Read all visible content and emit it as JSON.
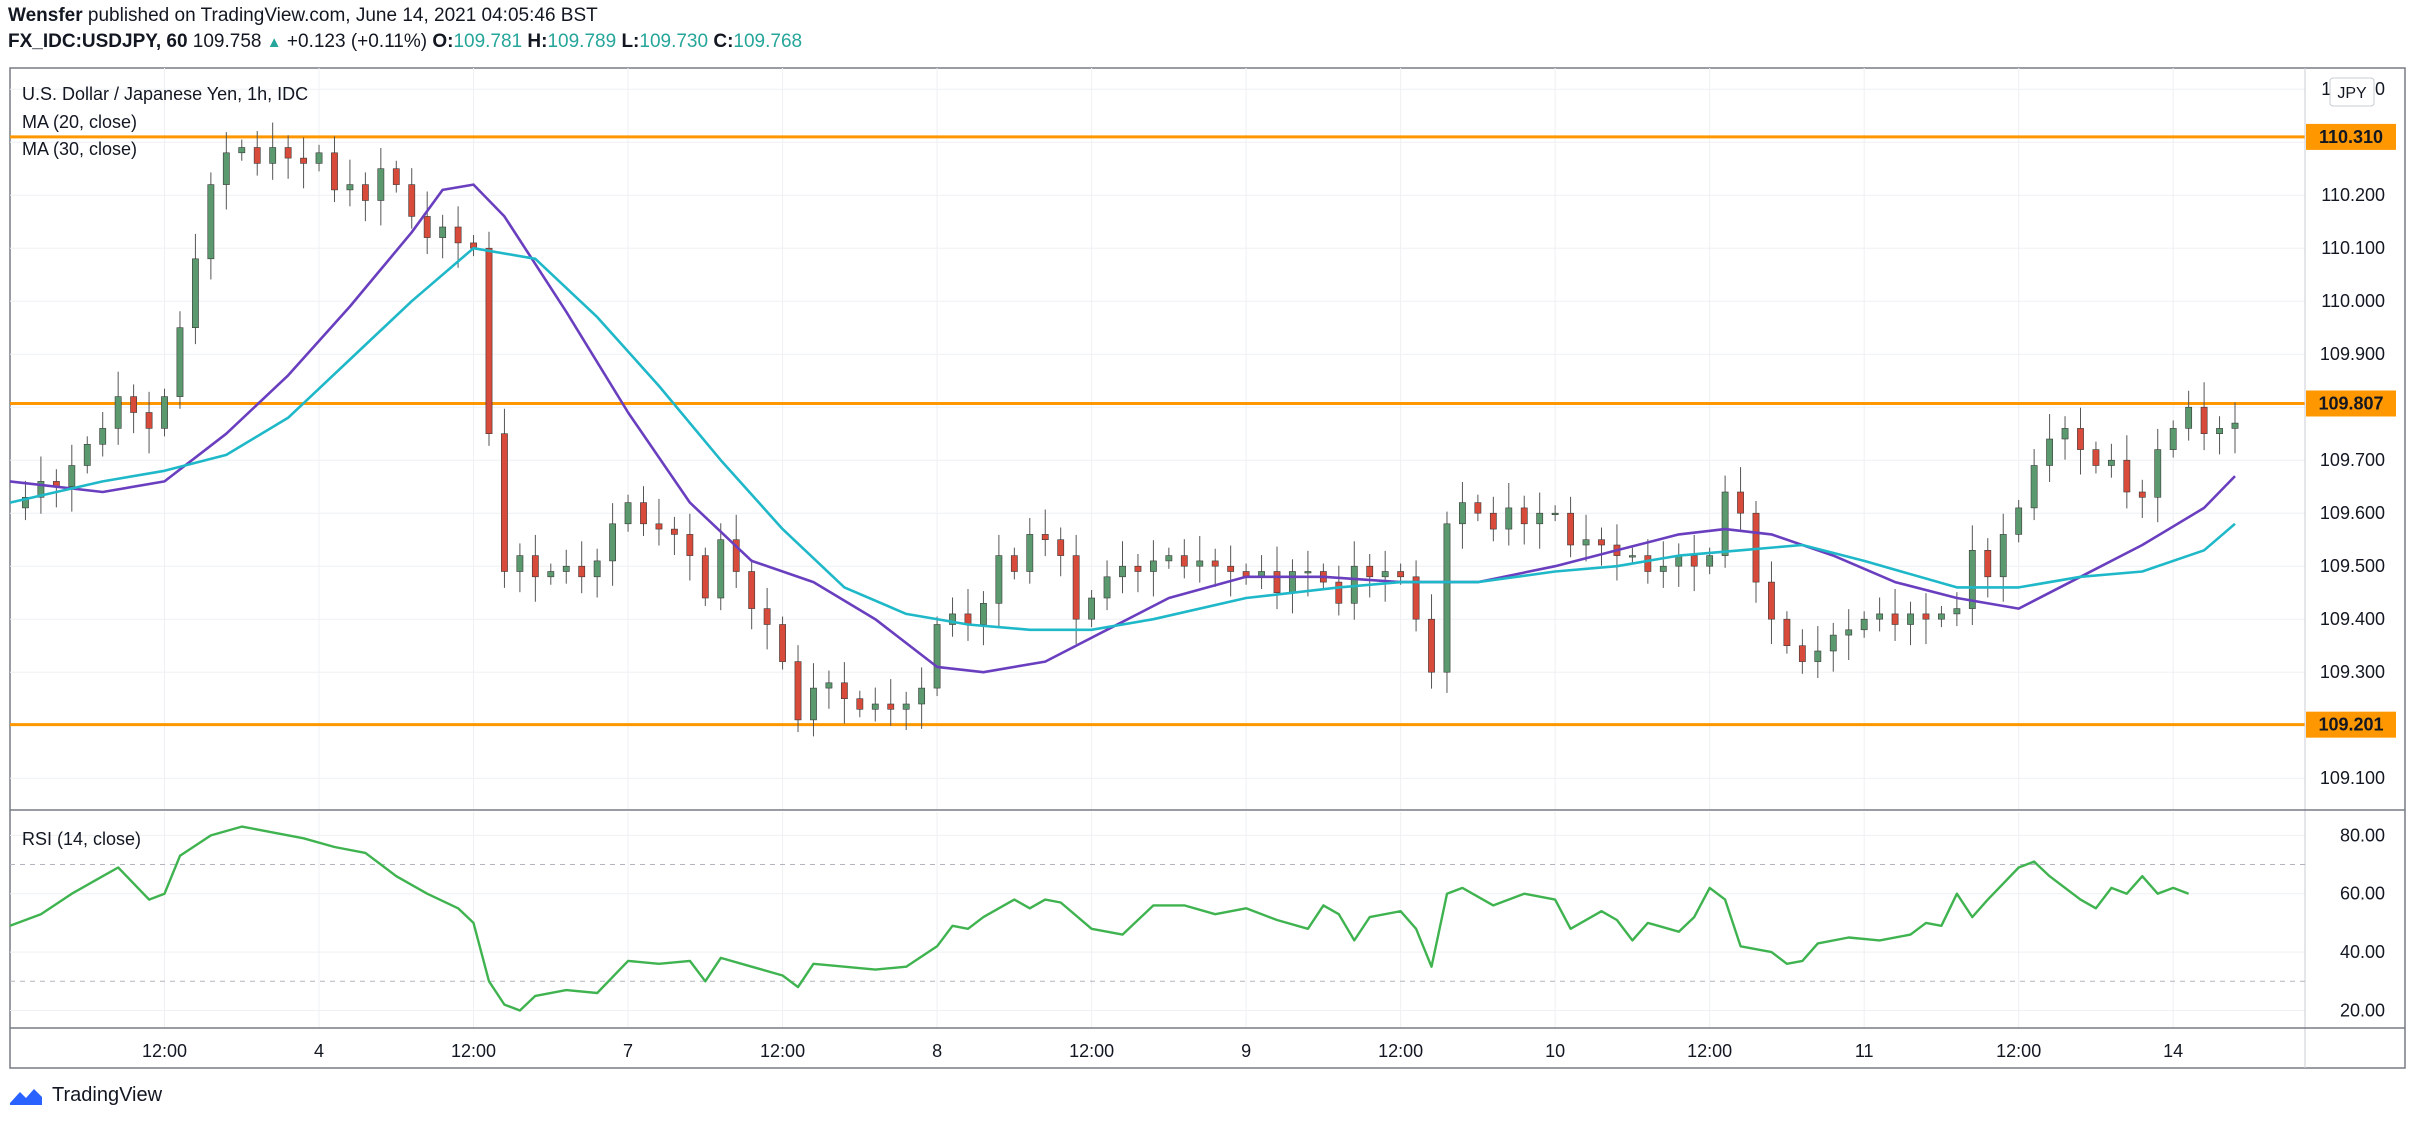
{
  "header": {
    "publisher": "Wensfer",
    "published_text": "published on TradingView.com, June 14, 2021 04:05:46 BST",
    "symbol": "FX_IDC:USDJPY, 60",
    "last": "109.758",
    "change": "+0.123 (+0.11%)",
    "o_label": "O:",
    "o": "109.781",
    "h_label": "H:",
    "h": "109.789",
    "l_label": "L:",
    "l": "109.730",
    "c_label": "C:",
    "c": "109.768"
  },
  "legend": {
    "title": "U.S. Dollar / Japanese Yen, 1h, IDC",
    "ma20": "MA (20, close)",
    "ma30": "MA (30, close)",
    "currency": "JPY",
    "rsi": "RSI (14, close)"
  },
  "footer": {
    "brand": "TradingView"
  },
  "colors": {
    "up": "#5b9a6e",
    "down": "#d84a3a",
    "ma20": "#6a3fbf",
    "ma30": "#1fb8c9",
    "level": "#ff9800",
    "rsi": "#3fb34f",
    "grid": "#eef0f3"
  },
  "chart_data": {
    "type": "candlestick",
    "title": "U.S. Dollar / Japanese Yen, 1h, IDC",
    "price_axis": {
      "ylim": [
        109.04,
        110.44
      ],
      "ticks": [
        109.1,
        109.2,
        109.3,
        109.4,
        109.5,
        109.6,
        109.7,
        109.8,
        109.9,
        110.0,
        110.1,
        110.2,
        110.3,
        110.4
      ],
      "tick_labels": [
        "109.100",
        "109.200",
        "109.300",
        "109.400",
        "109.500",
        "109.600",
        "109.700",
        "109.800",
        "109.900",
        "110.000",
        "110.100",
        "110.200",
        "110.300",
        "110.400"
      ]
    },
    "x_axis": {
      "range": [
        0,
        144
      ],
      "tick_labels": [
        {
          "label": "12:00",
          "x": 10
        },
        {
          "label": "4",
          "x": 20
        },
        {
          "label": "12:00",
          "x": 30
        },
        {
          "label": "7",
          "x": 40
        },
        {
          "label": "12:00",
          "x": 50
        },
        {
          "label": "8",
          "x": 60
        },
        {
          "label": "12:00",
          "x": 70
        },
        {
          "label": "9",
          "x": 80
        },
        {
          "label": "12:00",
          "x": 90
        },
        {
          "label": "10",
          "x": 100
        },
        {
          "label": "12:00",
          "x": 110
        },
        {
          "label": "11",
          "x": 120
        },
        {
          "label": "12:00",
          "x": 130
        },
        {
          "label": "14",
          "x": 140
        }
      ]
    },
    "levels": [
      {
        "value": 110.31,
        "label": "110.310"
      },
      {
        "value": 109.807,
        "label": "109.807"
      },
      {
        "value": 109.201,
        "label": "109.201"
      }
    ],
    "close_anchors": [
      [
        0,
        109.61
      ],
      [
        1,
        109.63
      ],
      [
        2,
        109.66
      ],
      [
        3,
        109.65
      ],
      [
        4,
        109.69
      ],
      [
        5,
        109.73
      ],
      [
        6,
        109.76
      ],
      [
        7,
        109.82
      ],
      [
        8,
        109.79
      ],
      [
        9,
        109.76
      ],
      [
        10,
        109.82
      ],
      [
        11,
        109.95
      ],
      [
        12,
        110.08
      ],
      [
        13,
        110.22
      ],
      [
        14,
        110.28
      ],
      [
        15,
        110.29
      ],
      [
        16,
        110.26
      ],
      [
        17,
        110.29
      ],
      [
        18,
        110.27
      ],
      [
        19,
        110.26
      ],
      [
        20,
        110.28
      ],
      [
        21,
        110.21
      ],
      [
        22,
        110.22
      ],
      [
        23,
        110.19
      ],
      [
        24,
        110.25
      ],
      [
        25,
        110.22
      ],
      [
        26,
        110.16
      ],
      [
        27,
        110.12
      ],
      [
        28,
        110.14
      ],
      [
        29,
        110.11
      ],
      [
        30,
        110.1
      ],
      [
        31,
        109.75
      ],
      [
        32,
        109.49
      ],
      [
        33,
        109.52
      ],
      [
        34,
        109.48
      ],
      [
        35,
        109.49
      ],
      [
        36,
        109.5
      ],
      [
        37,
        109.48
      ],
      [
        38,
        109.51
      ],
      [
        39,
        109.58
      ],
      [
        40,
        109.62
      ],
      [
        41,
        109.58
      ],
      [
        42,
        109.57
      ],
      [
        43,
        109.56
      ],
      [
        44,
        109.52
      ],
      [
        45,
        109.44
      ],
      [
        46,
        109.55
      ],
      [
        47,
        109.49
      ],
      [
        48,
        109.42
      ],
      [
        49,
        109.39
      ],
      [
        50,
        109.32
      ],
      [
        51,
        109.21
      ],
      [
        52,
        109.27
      ],
      [
        53,
        109.28
      ],
      [
        54,
        109.25
      ],
      [
        55,
        109.23
      ],
      [
        56,
        109.24
      ],
      [
        57,
        109.23
      ],
      [
        58,
        109.24
      ],
      [
        59,
        109.27
      ],
      [
        60,
        109.39
      ],
      [
        61,
        109.41
      ],
      [
        62,
        109.39
      ],
      [
        63,
        109.43
      ],
      [
        64,
        109.52
      ],
      [
        65,
        109.49
      ],
      [
        66,
        109.56
      ],
      [
        67,
        109.55
      ],
      [
        68,
        109.52
      ],
      [
        69,
        109.4
      ],
      [
        70,
        109.44
      ],
      [
        71,
        109.48
      ],
      [
        72,
        109.5
      ],
      [
        73,
        109.49
      ],
      [
        74,
        109.51
      ],
      [
        75,
        109.52
      ],
      [
        76,
        109.5
      ],
      [
        77,
        109.51
      ],
      [
        78,
        109.5
      ],
      [
        79,
        109.49
      ],
      [
        80,
        109.48
      ],
      [
        81,
        109.49
      ],
      [
        82,
        109.45
      ],
      [
        83,
        109.49
      ],
      [
        84,
        109.49
      ],
      [
        85,
        109.47
      ],
      [
        86,
        109.43
      ],
      [
        87,
        109.5
      ],
      [
        88,
        109.48
      ],
      [
        89,
        109.49
      ],
      [
        90,
        109.48
      ],
      [
        91,
        109.4
      ],
      [
        92,
        109.3
      ],
      [
        93,
        109.58
      ],
      [
        94,
        109.62
      ],
      [
        95,
        109.6
      ],
      [
        96,
        109.57
      ],
      [
        97,
        109.61
      ],
      [
        98,
        109.58
      ],
      [
        99,
        109.6
      ],
      [
        100,
        109.6
      ],
      [
        101,
        109.54
      ],
      [
        102,
        109.55
      ],
      [
        103,
        109.54
      ],
      [
        104,
        109.52
      ],
      [
        105,
        109.52
      ],
      [
        106,
        109.49
      ],
      [
        107,
        109.5
      ],
      [
        108,
        109.52
      ],
      [
        109,
        109.5
      ],
      [
        110,
        109.52
      ],
      [
        111,
        109.64
      ],
      [
        112,
        109.6
      ],
      [
        113,
        109.47
      ],
      [
        114,
        109.4
      ],
      [
        115,
        109.35
      ],
      [
        116,
        109.32
      ],
      [
        117,
        109.34
      ],
      [
        118,
        109.37
      ],
      [
        119,
        109.38
      ],
      [
        120,
        109.4
      ],
      [
        121,
        109.41
      ],
      [
        122,
        109.39
      ],
      [
        123,
        109.41
      ],
      [
        124,
        109.4
      ],
      [
        125,
        109.41
      ],
      [
        126,
        109.42
      ],
      [
        127,
        109.53
      ],
      [
        128,
        109.48
      ],
      [
        129,
        109.56
      ],
      [
        130,
        109.61
      ],
      [
        131,
        109.69
      ],
      [
        132,
        109.74
      ],
      [
        133,
        109.76
      ],
      [
        134,
        109.72
      ],
      [
        135,
        109.69
      ],
      [
        136,
        109.7
      ],
      [
        137,
        109.64
      ],
      [
        138,
        109.63
      ],
      [
        139,
        109.72
      ],
      [
        140,
        109.76
      ],
      [
        141,
        109.8
      ],
      [
        142,
        109.75
      ],
      [
        143,
        109.76
      ],
      [
        144,
        109.77
      ]
    ],
    "series": [
      {
        "name": "MA (20, close)",
        "points": [
          [
            0,
            109.66
          ],
          [
            6,
            109.64
          ],
          [
            10,
            109.66
          ],
          [
            14,
            109.75
          ],
          [
            18,
            109.86
          ],
          [
            22,
            109.99
          ],
          [
            26,
            110.13
          ],
          [
            28,
            110.21
          ],
          [
            30,
            110.22
          ],
          [
            32,
            110.16
          ],
          [
            36,
            109.98
          ],
          [
            40,
            109.79
          ],
          [
            44,
            109.62
          ],
          [
            48,
            109.51
          ],
          [
            52,
            109.47
          ],
          [
            56,
            109.4
          ],
          [
            60,
            109.31
          ],
          [
            63,
            109.3
          ],
          [
            67,
            109.32
          ],
          [
            71,
            109.38
          ],
          [
            75,
            109.44
          ],
          [
            80,
            109.48
          ],
          [
            85,
            109.48
          ],
          [
            90,
            109.47
          ],
          [
            95,
            109.47
          ],
          [
            100,
            109.5
          ],
          [
            104,
            109.53
          ],
          [
            108,
            109.56
          ],
          [
            111,
            109.57
          ],
          [
            114,
            109.56
          ],
          [
            118,
            109.52
          ],
          [
            122,
            109.47
          ],
          [
            126,
            109.44
          ],
          [
            130,
            109.42
          ],
          [
            134,
            109.48
          ],
          [
            138,
            109.54
          ],
          [
            142,
            109.61
          ],
          [
            144,
            109.67
          ]
        ]
      },
      {
        "name": "MA (30, close)",
        "points": [
          [
            0,
            109.62
          ],
          [
            6,
            109.66
          ],
          [
            10,
            109.68
          ],
          [
            14,
            109.71
          ],
          [
            18,
            109.78
          ],
          [
            22,
            109.89
          ],
          [
            26,
            110.0
          ],
          [
            30,
            110.1
          ],
          [
            34,
            110.08
          ],
          [
            38,
            109.97
          ],
          [
            42,
            109.84
          ],
          [
            46,
            109.7
          ],
          [
            50,
            109.57
          ],
          [
            54,
            109.46
          ],
          [
            58,
            109.41
          ],
          [
            62,
            109.39
          ],
          [
            66,
            109.38
          ],
          [
            70,
            109.38
          ],
          [
            74,
            109.4
          ],
          [
            80,
            109.44
          ],
          [
            86,
            109.46
          ],
          [
            90,
            109.47
          ],
          [
            95,
            109.47
          ],
          [
            100,
            109.49
          ],
          [
            104,
            109.5
          ],
          [
            108,
            109.52
          ],
          [
            112,
            109.53
          ],
          [
            116,
            109.54
          ],
          [
            120,
            109.51
          ],
          [
            126,
            109.46
          ],
          [
            130,
            109.46
          ],
          [
            134,
            109.48
          ],
          [
            138,
            109.49
          ],
          [
            142,
            109.53
          ],
          [
            144,
            109.58
          ]
        ]
      }
    ],
    "rsi": {
      "name": "RSI (14, close)",
      "ylim": [
        14,
        88
      ],
      "ticks": [
        20,
        40,
        60,
        80
      ],
      "tick_labels": [
        "20.00",
        "40.00",
        "60.00",
        "80.00"
      ],
      "bands": [
        30,
        70
      ],
      "points": [
        [
          0,
          49
        ],
        [
          2,
          53
        ],
        [
          4,
          60
        ],
        [
          6,
          66
        ],
        [
          7,
          69
        ],
        [
          9,
          58
        ],
        [
          10,
          60
        ],
        [
          11,
          73
        ],
        [
          13,
          80
        ],
        [
          15,
          83
        ],
        [
          17,
          81
        ],
        [
          19,
          79
        ],
        [
          21,
          76
        ],
        [
          23,
          74
        ],
        [
          25,
          66
        ],
        [
          27,
          60
        ],
        [
          29,
          55
        ],
        [
          30,
          50
        ],
        [
          31,
          30
        ],
        [
          32,
          22
        ],
        [
          33,
          20
        ],
        [
          34,
          25
        ],
        [
          36,
          27
        ],
        [
          38,
          26
        ],
        [
          40,
          37
        ],
        [
          42,
          36
        ],
        [
          44,
          37
        ],
        [
          45,
          30
        ],
        [
          46,
          38
        ],
        [
          48,
          35
        ],
        [
          50,
          32
        ],
        [
          51,
          28
        ],
        [
          52,
          36
        ],
        [
          54,
          35
        ],
        [
          56,
          34
        ],
        [
          58,
          35
        ],
        [
          60,
          42
        ],
        [
          61,
          49
        ],
        [
          62,
          48
        ],
        [
          63,
          52
        ],
        [
          65,
          58
        ],
        [
          66,
          55
        ],
        [
          67,
          58
        ],
        [
          68,
          57
        ],
        [
          70,
          48
        ],
        [
          72,
          46
        ],
        [
          74,
          56
        ],
        [
          76,
          56
        ],
        [
          78,
          53
        ],
        [
          80,
          55
        ],
        [
          82,
          51
        ],
        [
          84,
          48
        ],
        [
          85,
          56
        ],
        [
          86,
          53
        ],
        [
          87,
          44
        ],
        [
          88,
          52
        ],
        [
          90,
          54
        ],
        [
          91,
          48
        ],
        [
          92,
          35
        ],
        [
          93,
          60
        ],
        [
          94,
          62
        ],
        [
          96,
          56
        ],
        [
          98,
          60
        ],
        [
          100,
          58
        ],
        [
          101,
          48
        ],
        [
          103,
          54
        ],
        [
          104,
          51
        ],
        [
          105,
          44
        ],
        [
          106,
          50
        ],
        [
          108,
          47
        ],
        [
          109,
          52
        ],
        [
          110,
          62
        ],
        [
          111,
          58
        ],
        [
          112,
          42
        ],
        [
          114,
          40
        ],
        [
          115,
          36
        ],
        [
          116,
          37
        ],
        [
          117,
          43
        ],
        [
          119,
          45
        ],
        [
          121,
          44
        ],
        [
          123,
          46
        ],
        [
          124,
          50
        ],
        [
          125,
          49
        ],
        [
          126,
          60
        ],
        [
          127,
          52
        ],
        [
          128,
          58
        ],
        [
          130,
          69
        ],
        [
          131,
          71
        ],
        [
          132,
          66
        ],
        [
          134,
          58
        ],
        [
          135,
          55
        ],
        [
          136,
          62
        ],
        [
          137,
          60
        ],
        [
          138,
          66
        ],
        [
          139,
          60
        ],
        [
          140,
          62
        ],
        [
          141,
          60
        ]
      ]
    }
  }
}
